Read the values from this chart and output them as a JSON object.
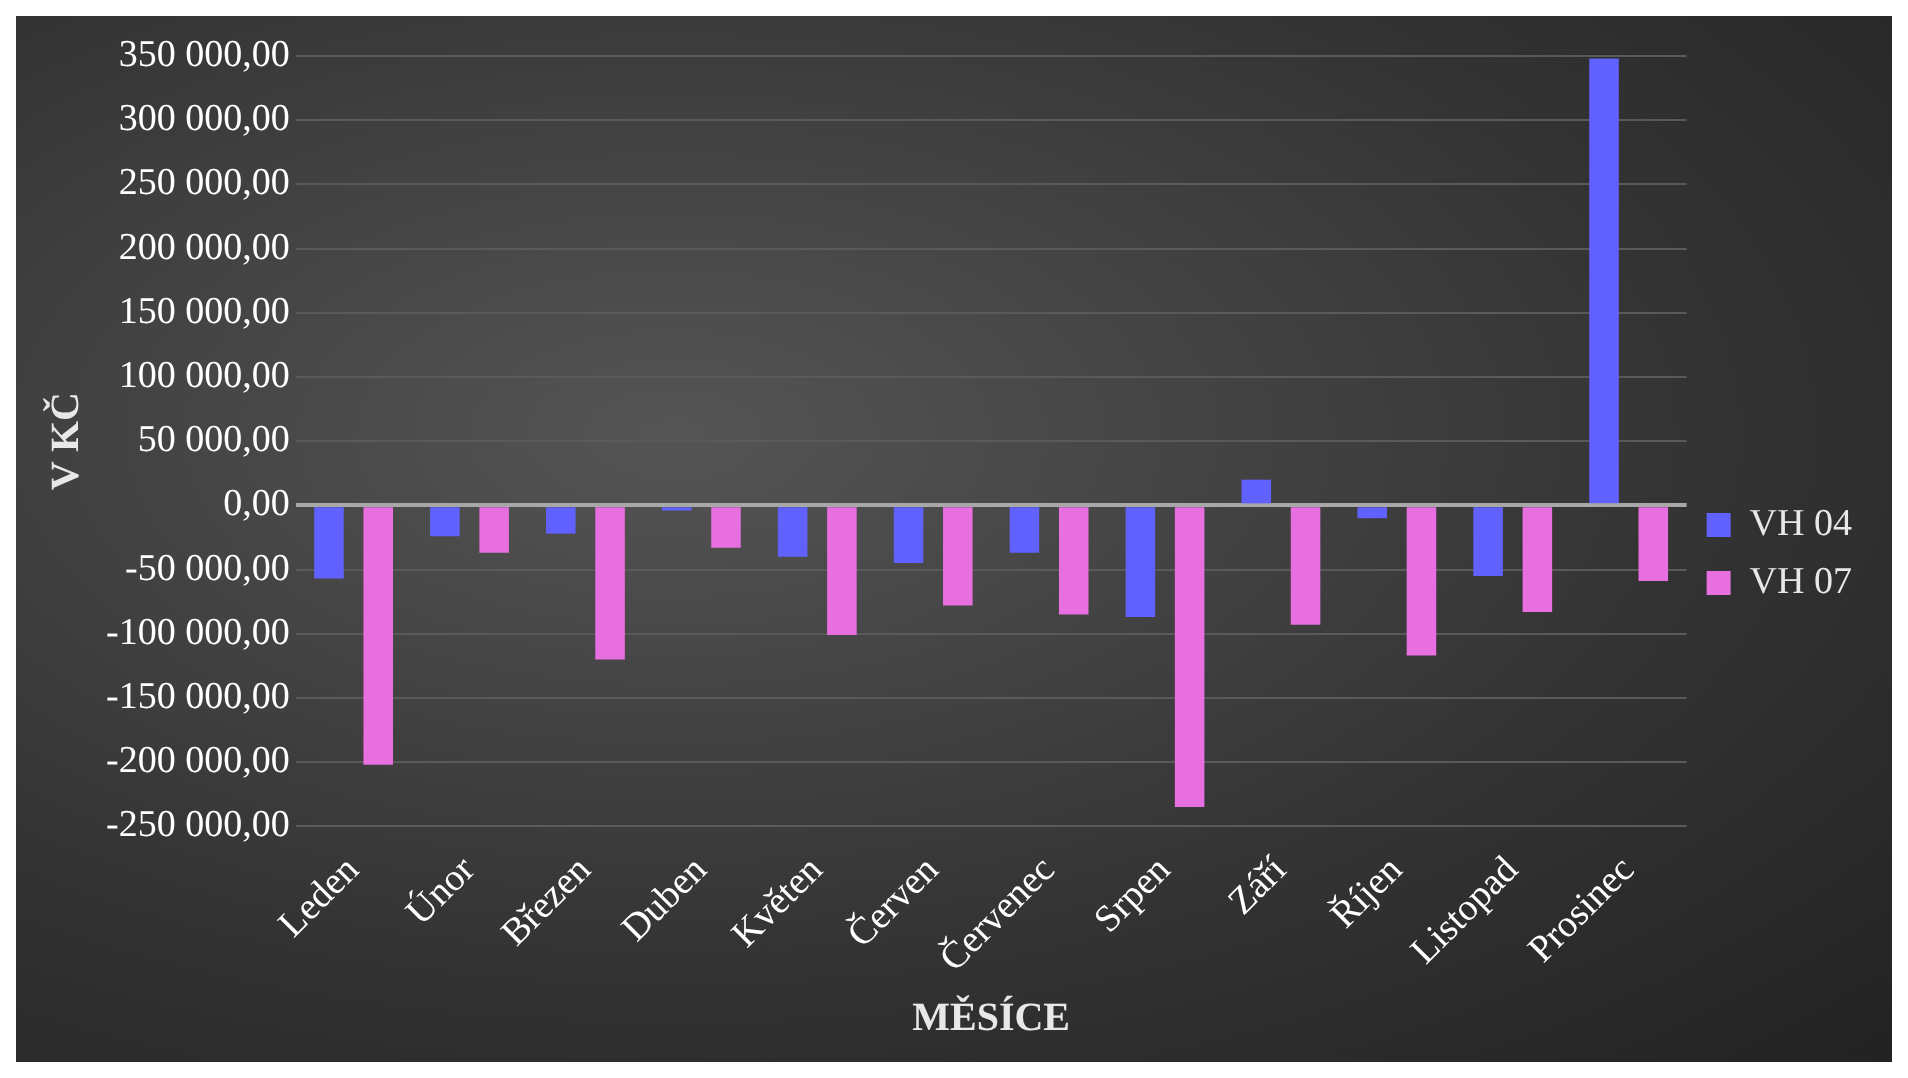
{
  "chart_data": {
    "type": "bar",
    "xlabel": "MĚSÍCE",
    "ylabel": "V KČ",
    "categories": [
      "Leden",
      "Únor",
      "Březen",
      "Duben",
      "Květen",
      "Červen",
      "Červenec",
      "Srpen",
      "Září",
      "Říjen",
      "Listopad",
      "Prosinec"
    ],
    "series": [
      {
        "name": "VH 04",
        "color": "#6161ff",
        "values": [
          -57000,
          -24000,
          -22000,
          -4000,
          -40000,
          -45000,
          -37000,
          -87000,
          20000,
          -10000,
          -55000,
          348000
        ]
      },
      {
        "name": "VH 07",
        "color": "#e86fe0",
        "values": [
          -202000,
          -37000,
          -120000,
          -33000,
          -101000,
          -78000,
          -85000,
          -235000,
          -93000,
          -117000,
          -83000,
          -59000
        ]
      }
    ],
    "ylim": [
      -250000,
      350000
    ],
    "yticks": [
      {
        "value": -250000,
        "label": "-250 000,00"
      },
      {
        "value": -200000,
        "label": "-200 000,00"
      },
      {
        "value": -150000,
        "label": "-150 000,00"
      },
      {
        "value": -100000,
        "label": "-100 000,00"
      },
      {
        "value": -50000,
        "label": "-50 000,00"
      },
      {
        "value": 0,
        "label": "0,00"
      },
      {
        "value": 50000,
        "label": "50 000,00"
      },
      {
        "value": 100000,
        "label": "100 000,00"
      },
      {
        "value": 150000,
        "label": "150 000,00"
      },
      {
        "value": 200000,
        "label": "200 000,00"
      },
      {
        "value": 250000,
        "label": "250 000,00"
      },
      {
        "value": 300000,
        "label": "300 000,00"
      },
      {
        "value": 350000,
        "label": "350 000,00"
      }
    ],
    "grid": "y",
    "legend": "right"
  }
}
